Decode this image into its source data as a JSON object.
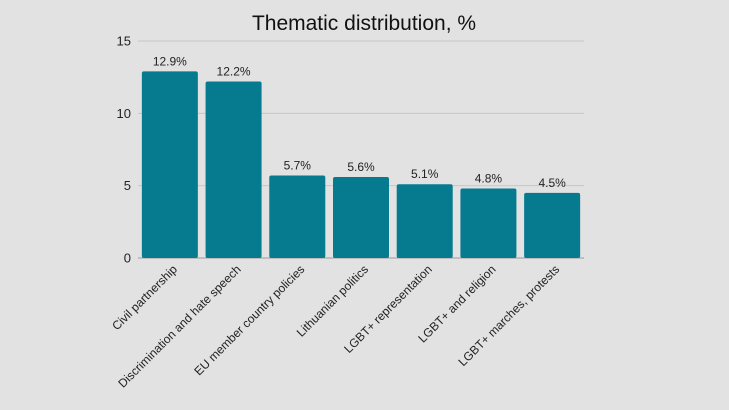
{
  "chart_data": {
    "type": "bar",
    "title": "Thematic distribution, %",
    "xlabel": "",
    "ylabel": "",
    "ylim": [
      0,
      15
    ],
    "yticks": [
      0,
      5,
      10,
      15
    ],
    "grid": true,
    "bar_color": "#067a8f",
    "categories": [
      "Civil partnership",
      "Discrimination and hate speech",
      "EU member country policies",
      "Lithuanian politics",
      "LGBT+ representation",
      "LGBT+ and religion",
      "LGBT+ marches, protests"
    ],
    "values": [
      12.9,
      12.2,
      5.7,
      5.6,
      5.1,
      4.8,
      4.5
    ],
    "value_labels": [
      "12.9%",
      "12.2%",
      "5.7%",
      "5.6%",
      "5.1%",
      "4.8%",
      "4.5%"
    ]
  }
}
